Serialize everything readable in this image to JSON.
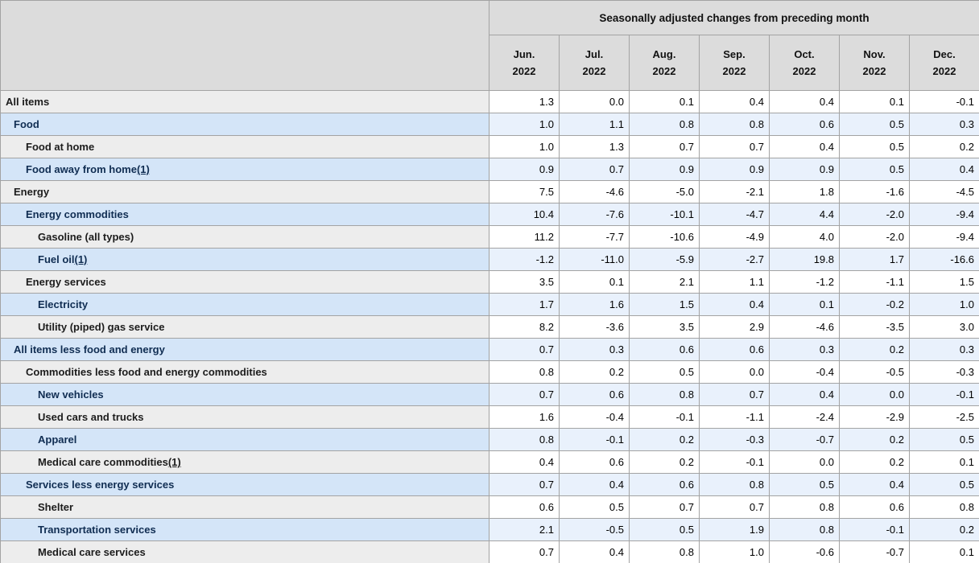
{
  "chart_data": {
    "type": "table",
    "title": "Seasonally adjusted changes from preceding month",
    "columns": [
      {
        "month": "Jun.",
        "year": "2022"
      },
      {
        "month": "Jul.",
        "year": "2022"
      },
      {
        "month": "Aug.",
        "year": "2022"
      },
      {
        "month": "Sep.",
        "year": "2022"
      },
      {
        "month": "Oct.",
        "year": "2022"
      },
      {
        "month": "Nov.",
        "year": "2022"
      },
      {
        "month": "Dec.",
        "year": "2022"
      }
    ],
    "rows": [
      {
        "label": "All items",
        "indent": 0,
        "footnote": null,
        "values": [
          "1.3",
          "0.0",
          "0.1",
          "0.4",
          "0.4",
          "0.1",
          "-0.1"
        ]
      },
      {
        "label": "Food",
        "indent": 1,
        "footnote": null,
        "values": [
          "1.0",
          "1.1",
          "0.8",
          "0.8",
          "0.6",
          "0.5",
          "0.3"
        ]
      },
      {
        "label": "Food at home",
        "indent": 2,
        "footnote": null,
        "values": [
          "1.0",
          "1.3",
          "0.7",
          "0.7",
          "0.4",
          "0.5",
          "0.2"
        ]
      },
      {
        "label": "Food away from home",
        "indent": 2,
        "footnote": "(1)",
        "values": [
          "0.9",
          "0.7",
          "0.9",
          "0.9",
          "0.9",
          "0.5",
          "0.4"
        ]
      },
      {
        "label": "Energy",
        "indent": 1,
        "footnote": null,
        "values": [
          "7.5",
          "-4.6",
          "-5.0",
          "-2.1",
          "1.8",
          "-1.6",
          "-4.5"
        ]
      },
      {
        "label": "Energy commodities",
        "indent": 2,
        "footnote": null,
        "values": [
          "10.4",
          "-7.6",
          "-10.1",
          "-4.7",
          "4.4",
          "-2.0",
          "-9.4"
        ]
      },
      {
        "label": "Gasoline (all types)",
        "indent": 3,
        "footnote": null,
        "values": [
          "11.2",
          "-7.7",
          "-10.6",
          "-4.9",
          "4.0",
          "-2.0",
          "-9.4"
        ]
      },
      {
        "label": "Fuel oil",
        "indent": 3,
        "footnote": "(1)",
        "values": [
          "-1.2",
          "-11.0",
          "-5.9",
          "-2.7",
          "19.8",
          "1.7",
          "-16.6"
        ]
      },
      {
        "label": "Energy services",
        "indent": 2,
        "footnote": null,
        "values": [
          "3.5",
          "0.1",
          "2.1",
          "1.1",
          "-1.2",
          "-1.1",
          "1.5"
        ]
      },
      {
        "label": "Electricity",
        "indent": 3,
        "footnote": null,
        "values": [
          "1.7",
          "1.6",
          "1.5",
          "0.4",
          "0.1",
          "-0.2",
          "1.0"
        ]
      },
      {
        "label": "Utility (piped) gas service",
        "indent": 3,
        "footnote": null,
        "values": [
          "8.2",
          "-3.6",
          "3.5",
          "2.9",
          "-4.6",
          "-3.5",
          "3.0"
        ]
      },
      {
        "label": "All items less food and energy",
        "indent": 1,
        "footnote": null,
        "values": [
          "0.7",
          "0.3",
          "0.6",
          "0.6",
          "0.3",
          "0.2",
          "0.3"
        ]
      },
      {
        "label": "Commodities less food and energy commodities",
        "indent": 2,
        "footnote": null,
        "values": [
          "0.8",
          "0.2",
          "0.5",
          "0.0",
          "-0.4",
          "-0.5",
          "-0.3"
        ]
      },
      {
        "label": "New vehicles",
        "indent": 3,
        "footnote": null,
        "values": [
          "0.7",
          "0.6",
          "0.8",
          "0.7",
          "0.4",
          "0.0",
          "-0.1"
        ]
      },
      {
        "label": "Used cars and trucks",
        "indent": 3,
        "footnote": null,
        "values": [
          "1.6",
          "-0.4",
          "-0.1",
          "-1.1",
          "-2.4",
          "-2.9",
          "-2.5"
        ]
      },
      {
        "label": "Apparel",
        "indent": 3,
        "footnote": null,
        "values": [
          "0.8",
          "-0.1",
          "0.2",
          "-0.3",
          "-0.7",
          "0.2",
          "0.5"
        ]
      },
      {
        "label": "Medical care commodities",
        "indent": 3,
        "footnote": "(1)",
        "values": [
          "0.4",
          "0.6",
          "0.2",
          "-0.1",
          "0.0",
          "0.2",
          "0.1"
        ]
      },
      {
        "label": "Services less energy services",
        "indent": 2,
        "footnote": null,
        "values": [
          "0.7",
          "0.4",
          "0.6",
          "0.8",
          "0.5",
          "0.4",
          "0.5"
        ]
      },
      {
        "label": "Shelter",
        "indent": 3,
        "footnote": null,
        "values": [
          "0.6",
          "0.5",
          "0.7",
          "0.7",
          "0.8",
          "0.6",
          "0.8"
        ]
      },
      {
        "label": "Transportation services",
        "indent": 3,
        "footnote": null,
        "values": [
          "2.1",
          "-0.5",
          "0.5",
          "1.9",
          "0.8",
          "-0.1",
          "0.2"
        ]
      },
      {
        "label": "Medical care services",
        "indent": 3,
        "footnote": null,
        "values": [
          "0.7",
          "0.4",
          "0.8",
          "1.0",
          "-0.6",
          "-0.7",
          "0.1"
        ]
      }
    ]
  },
  "colors": {
    "header_bg": "#dcdcdc",
    "gray_row_label_bg": "#ededed",
    "gray_row_data_bg": "#ffffff",
    "blue_row_label_bg": "#d4e5f8",
    "blue_row_data_bg": "#e9f1fc",
    "border": "#a3a3a3"
  }
}
